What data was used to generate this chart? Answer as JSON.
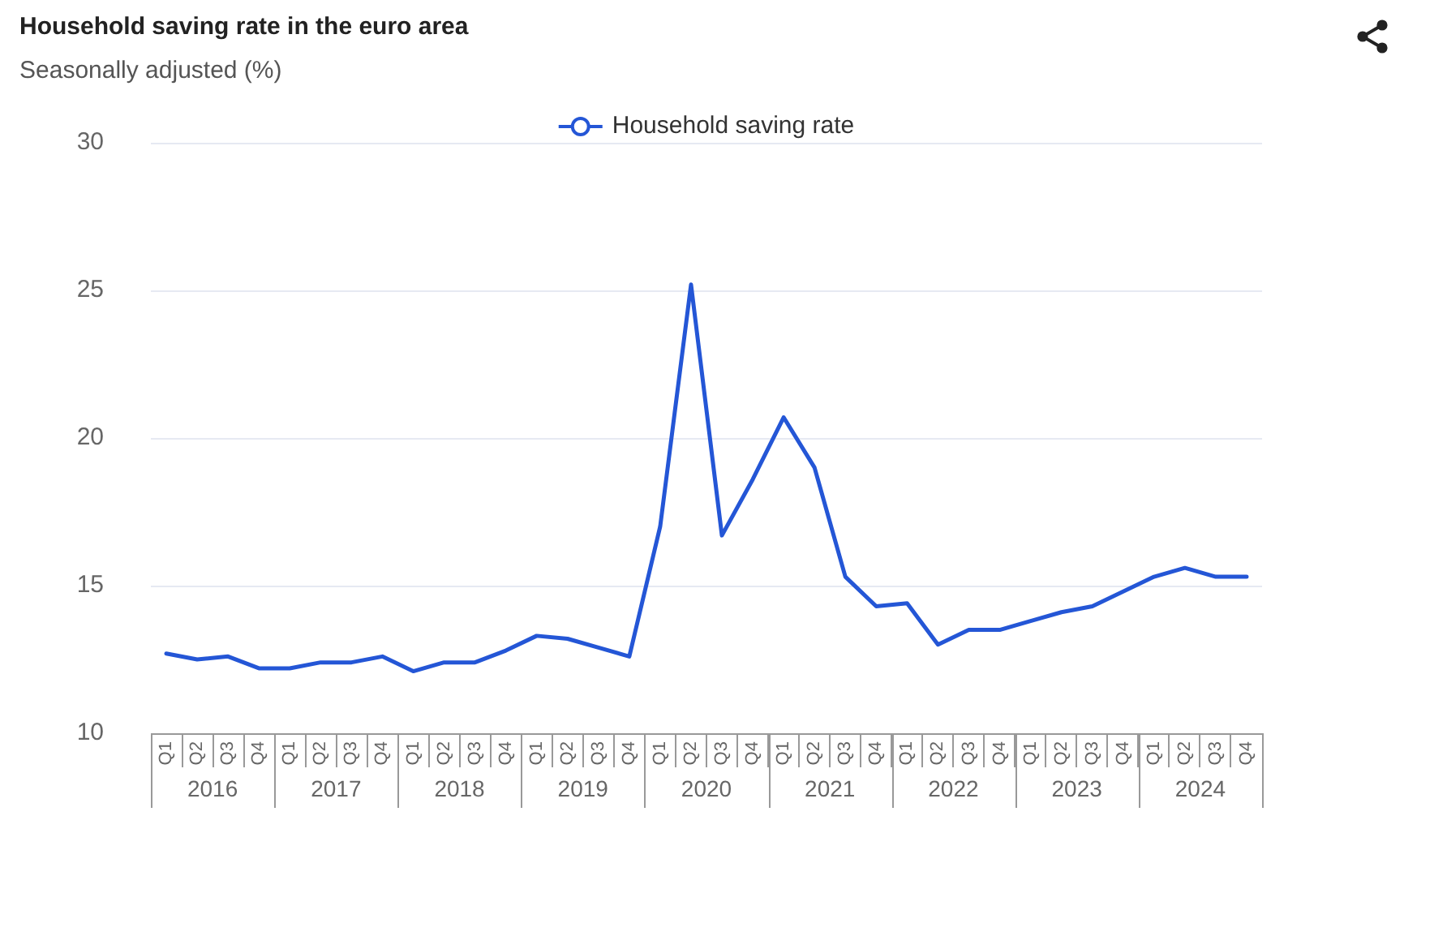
{
  "chart_data": {
    "type": "line",
    "title": "Household saving rate in the euro area",
    "subtitle": "Seasonally adjusted (%)",
    "categories": [
      "Q1",
      "Q2",
      "Q3",
      "Q4",
      "Q1",
      "Q2",
      "Q3",
      "Q4",
      "Q1",
      "Q2",
      "Q3",
      "Q4",
      "Q1",
      "Q2",
      "Q3",
      "Q4",
      "Q1",
      "Q2",
      "Q3",
      "Q4",
      "Q1",
      "Q2",
      "Q3",
      "Q4",
      "Q1",
      "Q2",
      "Q3",
      "Q4",
      "Q1",
      "Q2",
      "Q3",
      "Q4",
      "Q1",
      "Q2",
      "Q3",
      "Q4"
    ],
    "series": [
      {
        "name": "Household saving rate",
        "color": "#2456d6",
        "values": [
          12.7,
          12.5,
          12.6,
          12.2,
          12.2,
          12.4,
          12.4,
          12.6,
          12.1,
          12.4,
          12.4,
          12.8,
          13.3,
          13.2,
          12.9,
          12.6,
          17.0,
          25.2,
          16.7,
          18.6,
          20.7,
          19.0,
          15.3,
          14.3,
          14.4,
          13.0,
          13.5,
          13.5,
          13.8,
          14.1,
          14.3,
          14.8,
          15.3,
          15.6,
          15.3,
          15.3
        ]
      }
    ],
    "ylim": [
      10,
      30
    ],
    "yticks": [
      10,
      15,
      20,
      25,
      30
    ],
    "grid": "y",
    "legend": "top",
    "annotations": [
      "2016",
      "2017",
      "2018",
      "2019",
      "2020",
      "2021",
      "2022",
      "2023",
      "2024"
    ]
  }
}
